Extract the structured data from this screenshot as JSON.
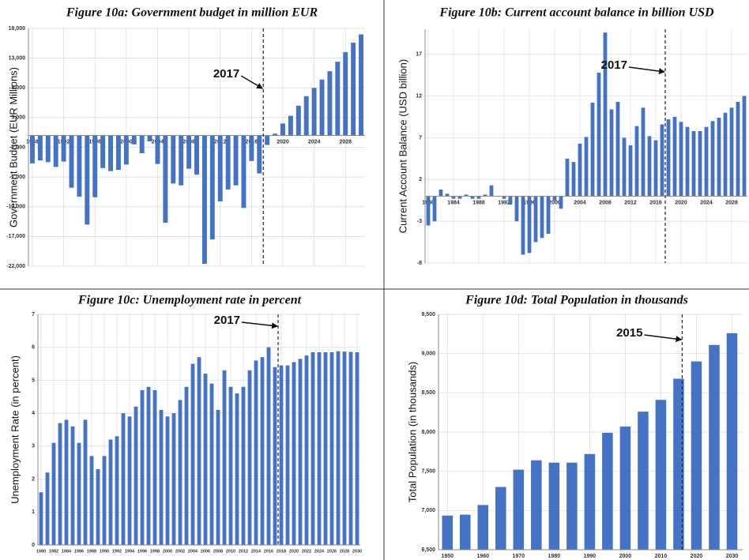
{
  "chart_data": [
    {
      "type": "bar",
      "title": "Figure 10a: Government budget in million EUR",
      "ylabel": "Government Budget (EUR Millions)",
      "color": "#4472c4",
      "grid": true,
      "x": [
        1988,
        1989,
        1990,
        1991,
        1992,
        1993,
        1994,
        1995,
        1996,
        1997,
        1998,
        1999,
        2000,
        2001,
        2002,
        2003,
        2004,
        2005,
        2006,
        2007,
        2008,
        2009,
        2010,
        2011,
        2012,
        2013,
        2014,
        2015,
        2016,
        2017,
        2018,
        2019,
        2020,
        2021,
        2022,
        2023,
        2024,
        2025,
        2026,
        2027,
        2028,
        2029,
        2030
      ],
      "values": [
        -4700,
        -4200,
        -4500,
        -5300,
        -4400,
        -8800,
        -10300,
        -15000,
        -10400,
        -5500,
        -6000,
        -5800,
        -4900,
        -1500,
        -3000,
        -1000,
        -4800,
        -14700,
        -8100,
        -8400,
        -5600,
        -6600,
        -21600,
        -17500,
        -11100,
        -9100,
        -8400,
        -12200,
        -4300,
        -6400,
        -1600,
        300,
        2000,
        3300,
        5000,
        6600,
        8000,
        9400,
        10800,
        12400,
        14000,
        15600,
        17000
      ],
      "xlim": [
        1987.5,
        2030.5
      ],
      "xticks": [
        1988,
        1992,
        1996,
        2000,
        2004,
        2008,
        2012,
        2016,
        2020,
        2024,
        2028
      ],
      "ylim": [
        -22000,
        18000
      ],
      "yticks": [
        {
          "value": -22000,
          "label": "-22,000"
        },
        {
          "value": -17000,
          "label": "-17,000"
        },
        {
          "value": -12000,
          "label": "-12,000"
        },
        {
          "value": -7000,
          "label": "-7,000"
        },
        {
          "value": -2000,
          "label": "-2,000"
        },
        {
          "value": 3000,
          "label": "3,000"
        },
        {
          "value": 8000,
          "label": "8,000"
        },
        {
          "value": 13000,
          "label": "13,000"
        },
        {
          "value": 18000,
          "label": "18,000"
        }
      ],
      "marker_line": 2017
    },
    {
      "type": "bar",
      "title": "Figure 10b: Current account balance in billion USD",
      "ylabel": "Current Account Balance (USD billion)",
      "color": "#4472c4",
      "grid": true,
      "x": [
        1980,
        1981,
        1982,
        1983,
        1984,
        1985,
        1986,
        1987,
        1988,
        1989,
        1990,
        1991,
        1992,
        1993,
        1994,
        1995,
        1996,
        1997,
        1998,
        1999,
        2000,
        2001,
        2002,
        2003,
        2004,
        2005,
        2006,
        2007,
        2008,
        2009,
        2010,
        2011,
        2012,
        2013,
        2014,
        2015,
        2016,
        2017,
        2018,
        2019,
        2020,
        2021,
        2022,
        2023,
        2024,
        2025,
        2026,
        2027,
        2028,
        2029,
        2030
      ],
      "values": [
        -3.5,
        -3,
        0.8,
        0.3,
        -0.3,
        -0.3,
        0.2,
        -0.3,
        -0.3,
        0.2,
        1.3,
        0,
        -0.3,
        -1,
        -3,
        -7,
        -6.8,
        -5.5,
        -5,
        -4.5,
        -0.5,
        -1.5,
        4.5,
        4.1,
        6.3,
        7.1,
        11.2,
        14.8,
        19.6,
        10.4,
        11.3,
        7,
        6.1,
        8.4,
        10.6,
        7.2,
        6.7,
        8.6,
        9.2,
        9.5,
        8.9,
        8.3,
        7.8,
        7.8,
        8.3,
        9.0,
        9.4,
        10.0,
        10.6,
        11.3,
        12
      ],
      "xlim": [
        1979.5,
        2030.5
      ],
      "xticks": [
        1980,
        1984,
        1988,
        1992,
        1996,
        2000,
        2004,
        2008,
        2012,
        2016,
        2020,
        2024,
        2028
      ],
      "ylim": [
        -8,
        20
      ],
      "yticks": [
        -8,
        -3,
        2,
        7,
        12,
        17
      ],
      "marker_line": 2017
    },
    {
      "type": "bar",
      "title": "Figure 10c: Unemployment rate in percent",
      "ylabel": "Unemployment Rate (in percent)",
      "color": "#4472c4",
      "grid": true,
      "x": [
        1980,
        1981,
        1982,
        1983,
        1984,
        1985,
        1986,
        1987,
        1988,
        1989,
        1990,
        1991,
        1992,
        1993,
        1994,
        1995,
        1996,
        1997,
        1998,
        1999,
        2000,
        2001,
        2002,
        2003,
        2004,
        2005,
        2006,
        2007,
        2008,
        2009,
        2010,
        2011,
        2012,
        2013,
        2014,
        2015,
        2016,
        2017,
        2018,
        2019,
        2020,
        2021,
        2022,
        2023,
        2024,
        2025,
        2026,
        2027,
        2028,
        2029,
        2030
      ],
      "values": [
        1.6,
        2.2,
        3.1,
        3.7,
        3.8,
        3.6,
        3.1,
        3.8,
        2.7,
        2.3,
        2.7,
        3.2,
        3.3,
        4.0,
        3.9,
        4.2,
        4.7,
        4.8,
        4.7,
        4.1,
        3.9,
        4.0,
        4.4,
        4.8,
        5.5,
        5.7,
        5.2,
        4.9,
        4.1,
        5.3,
        4.8,
        4.6,
        4.8,
        5.3,
        5.6,
        5.7,
        6.0,
        5.4,
        5.45,
        5.45,
        5.55,
        5.65,
        5.75,
        5.85,
        5.85,
        5.85,
        5.85,
        5.88,
        5.87,
        5.86,
        5.85
      ],
      "xlim": [
        1979.5,
        2030.5
      ],
      "xticks": [
        1980,
        1982,
        1984,
        1986,
        1988,
        1990,
        1992,
        1994,
        1996,
        1998,
        2000,
        2002,
        2004,
        2006,
        2008,
        2010,
        2012,
        2014,
        2016,
        2018,
        2020,
        2022,
        2024,
        2026,
        2028,
        2030
      ],
      "ylim": [
        0,
        7
      ],
      "yticks": [
        0,
        1,
        2,
        3,
        4,
        5,
        6,
        7
      ],
      "marker_line": 2017
    },
    {
      "type": "bar",
      "title": "Figure 10d: Total Population in thousands",
      "ylabel": "Total Population (in thousands)",
      "color": "#4472c4",
      "grid": true,
      "x": [
        1950,
        1955,
        1960,
        1965,
        1970,
        1975,
        1980,
        1985,
        1990,
        1995,
        2000,
        2005,
        2010,
        2015,
        2020,
        2025,
        2030
      ],
      "values": [
        6935,
        6947,
        7070,
        7300,
        7520,
        7640,
        7610,
        7610,
        7720,
        7990,
        8070,
        8260,
        8410,
        8680,
        8900,
        9110,
        9260
      ],
      "xlim": [
        1947.5,
        2033
      ],
      "xticks": [
        1950,
        1960,
        1970,
        1980,
        1990,
        2000,
        2010,
        2020,
        2030
      ],
      "ylim": [
        6500,
        9500
      ],
      "yticks": [
        {
          "value": 6500,
          "label": "6,500"
        },
        {
          "value": 7000,
          "label": "7,000"
        },
        {
          "value": 7500,
          "label": "7,500"
        },
        {
          "value": 8000,
          "label": "8,000"
        },
        {
          "value": 8500,
          "label": "8,500"
        },
        {
          "value": 9000,
          "label": "9,000"
        },
        {
          "value": 9500,
          "label": "9,500"
        }
      ],
      "marker_line": 2015
    }
  ]
}
